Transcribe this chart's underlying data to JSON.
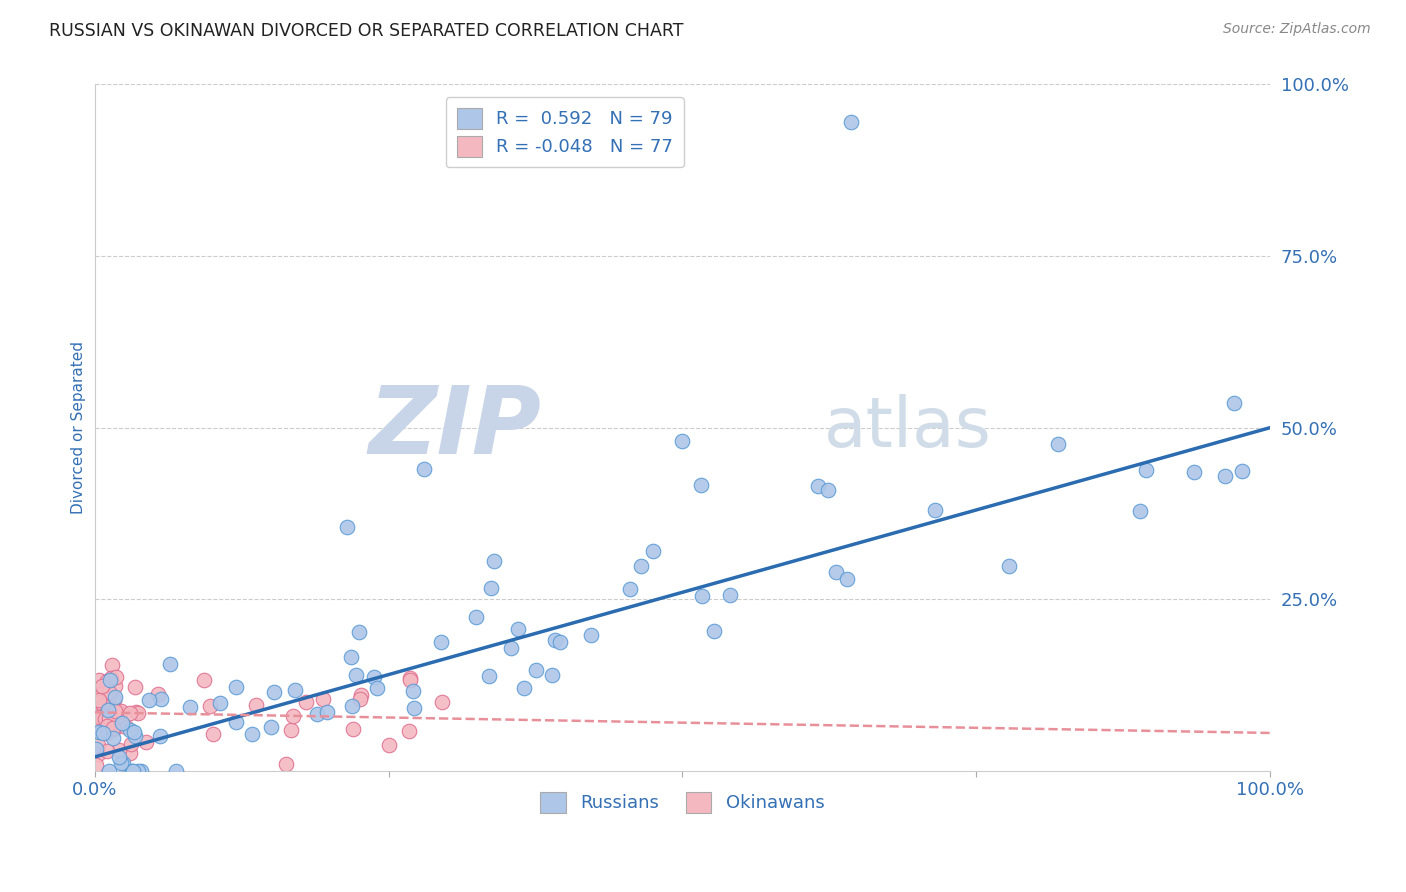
{
  "title": "RUSSIAN VS OKINAWAN DIVORCED OR SEPARATED CORRELATION CHART",
  "source": "Source: ZipAtlas.com",
  "ylabel": "Divorced or Separated",
  "watermark": "ZIPatlas",
  "russian_color": "#aec6e8",
  "russian_edge": "#5b9bd5",
  "okinawan_color": "#f4b8c1",
  "okinawan_edge": "#e07090",
  "russian_line_color": "#2b6cb0",
  "okinawan_line_color": "#e8909a",
  "R_russian": 0.592,
  "N_russian": 79,
  "R_okinawan": -0.048,
  "N_okinawan": 77,
  "background_color": "#ffffff",
  "grid_color": "#cccccc",
  "title_color": "#222222",
  "tick_label_color": "#3470b5",
  "watermark_color_zip": "#c8d4e8",
  "watermark_color_atlas": "#d0dce8",
  "legend1_label_blue": "R =  0.592   N = 79",
  "legend1_label_pink": "R = -0.048   N = 77",
  "legend2_label_blue": "Russians",
  "legend2_label_pink": "Okinawans",
  "ytick_positions": [
    0.0,
    0.25,
    0.5,
    0.75,
    1.0
  ],
  "ytick_labels_right": [
    "",
    "25.0%",
    "50.0%",
    "75.0%",
    "100.0%"
  ],
  "xtick_positions": [
    0.0,
    0.25,
    0.5,
    0.75,
    1.0
  ],
  "xtick_labels": [
    "0.0%",
    "",
    "",
    "",
    "100.0%"
  ],
  "xlim": [
    0.0,
    1.0
  ],
  "ylim": [
    0.0,
    1.0
  ],
  "rus_intercept": 0.02,
  "rus_slope": 0.48,
  "oki_intercept": 0.085,
  "oki_slope": -0.03
}
